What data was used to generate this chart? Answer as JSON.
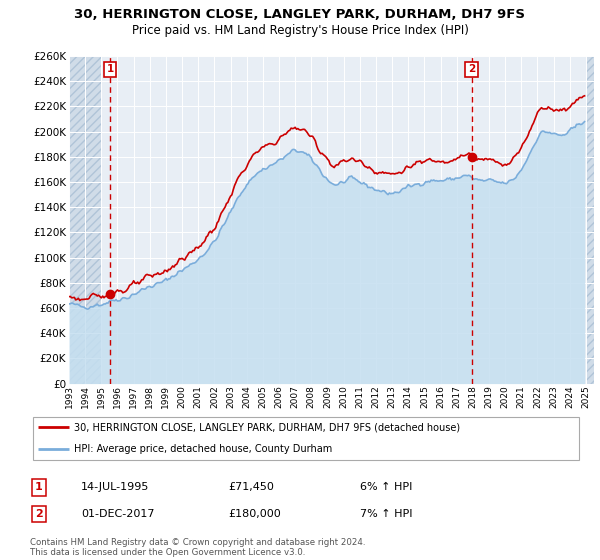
{
  "title": "30, HERRINGTON CLOSE, LANGLEY PARK, DURHAM, DH7 9FS",
  "subtitle": "Price paid vs. HM Land Registry's House Price Index (HPI)",
  "ylabel_ticks": [
    "£0",
    "£20K",
    "£40K",
    "£60K",
    "£80K",
    "£100K",
    "£120K",
    "£140K",
    "£160K",
    "£180K",
    "£200K",
    "£220K",
    "£240K",
    "£260K"
  ],
  "ylim": [
    0,
    260000
  ],
  "yticks": [
    0,
    20000,
    40000,
    60000,
    80000,
    100000,
    120000,
    140000,
    160000,
    180000,
    200000,
    220000,
    240000,
    260000
  ],
  "legend_label_red": "30, HERRINGTON CLOSE, LANGLEY PARK, DURHAM, DH7 9FS (detached house)",
  "legend_label_blue": "HPI: Average price, detached house, County Durham",
  "annotation1_date": "14-JUL-1995",
  "annotation1_price": "£71,450",
  "annotation1_hpi": "6% ↑ HPI",
  "annotation2_date": "01-DEC-2017",
  "annotation2_price": "£180,000",
  "annotation2_hpi": "7% ↑ HPI",
  "footer": "Contains HM Land Registry data © Crown copyright and database right 2024.\nThis data is licensed under the Open Government Licence v3.0.",
  "sale1_x": 1995.54,
  "sale1_y": 71450,
  "sale2_x": 2017.92,
  "sale2_y": 180000,
  "red_color": "#cc0000",
  "blue_color": "#7aaddb",
  "blue_fill": "#c5dff0",
  "hatch_bg": "#dce6f0",
  "plot_bg": "#e8eef5",
  "grid_color": "#ffffff",
  "xlim_lo": 1993.0,
  "xlim_hi": 2025.5
}
